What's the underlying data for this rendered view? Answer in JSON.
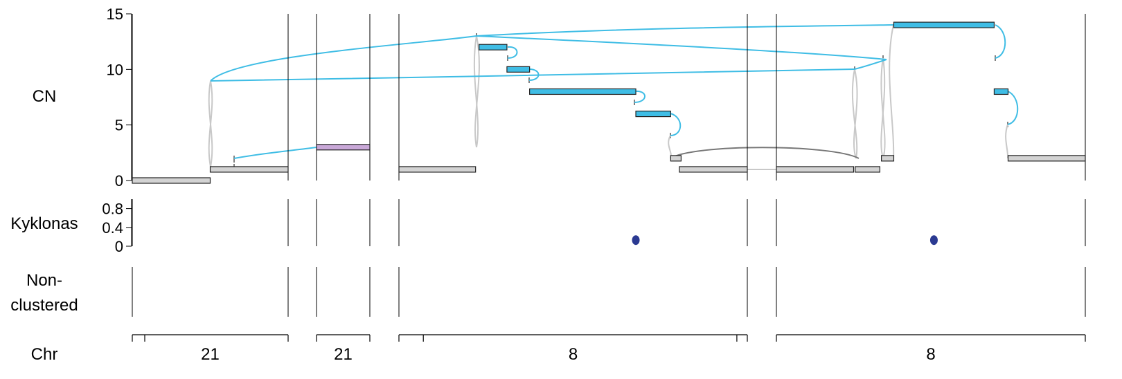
{
  "chart_data": {
    "type": "genome-graph",
    "panels": {
      "cn": {
        "label": "CN",
        "ylim": [
          0,
          15
        ],
        "ticks": [
          "0",
          "5",
          "10",
          "15"
        ]
      },
      "kyklonas": {
        "label": "Kyklonas",
        "ylim": [
          0,
          1
        ],
        "ticks": [
          "0",
          "0.4",
          "0.8"
        ]
      },
      "nonclustered": {
        "label_line1": "Non-",
        "label_line2": "clustered"
      },
      "chr": {
        "label": "Chr"
      }
    },
    "windows": [
      {
        "chr": "21"
      },
      {
        "chr": "21"
      },
      {
        "chr": "8"
      },
      {
        "chr": "8"
      }
    ],
    "segments": [
      {
        "window": 0,
        "start": 0.0,
        "end": 0.5,
        "cn": 0,
        "color": "#d3d3d3"
      },
      {
        "window": 0,
        "start": 0.5,
        "end": 1.0,
        "cn": 1,
        "color": "#d3d3d3"
      },
      {
        "window": 1,
        "start": 0.0,
        "end": 1.0,
        "cn": 3,
        "color": "#c9a8d8"
      },
      {
        "window": 2,
        "start": 0.0,
        "end": 0.22,
        "cn": 1,
        "color": "#d3d3d3"
      },
      {
        "window": 2,
        "start": 0.23,
        "end": 0.31,
        "cn": 12,
        "color": "#3fbde5"
      },
      {
        "window": 2,
        "start": 0.31,
        "end": 0.375,
        "cn": 10,
        "color": "#3fbde5"
      },
      {
        "window": 2,
        "start": 0.375,
        "end": 0.68,
        "cn": 8,
        "color": "#3fbde5"
      },
      {
        "window": 2,
        "start": 0.68,
        "end": 0.78,
        "cn": 6,
        "color": "#3fbde5"
      },
      {
        "window": 2,
        "start": 0.78,
        "end": 0.81,
        "cn": 2,
        "color": "#d3d3d3"
      },
      {
        "window": 2,
        "start": 0.805,
        "end": 1.0,
        "cn": 1,
        "color": "#d3d3d3"
      },
      {
        "window": 3,
        "start": 0.0,
        "end": 0.25,
        "cn": 1,
        "color": "#d3d3d3"
      },
      {
        "window": 3,
        "start": 0.255,
        "end": 0.335,
        "cn": 1,
        "color": "#d3d3d3"
      },
      {
        "window": 3,
        "start": 0.34,
        "end": 0.38,
        "cn": 2,
        "color": "#d3d3d3"
      },
      {
        "window": 3,
        "start": 0.38,
        "end": 0.705,
        "cn": 14,
        "color": "#3fbde5"
      },
      {
        "window": 3,
        "start": 0.705,
        "end": 0.75,
        "cn": 8,
        "color": "#3fbde5"
      },
      {
        "window": 3,
        "start": 0.75,
        "end": 1.0,
        "cn": 2,
        "color": "#d3d3d3"
      }
    ],
    "kyklonas_points": [
      {
        "window": 2,
        "pos": 0.68,
        "value": 0.1
      },
      {
        "window": 3,
        "pos": 0.51,
        "value": 0.1
      }
    ],
    "grid": false,
    "legend": "none"
  }
}
